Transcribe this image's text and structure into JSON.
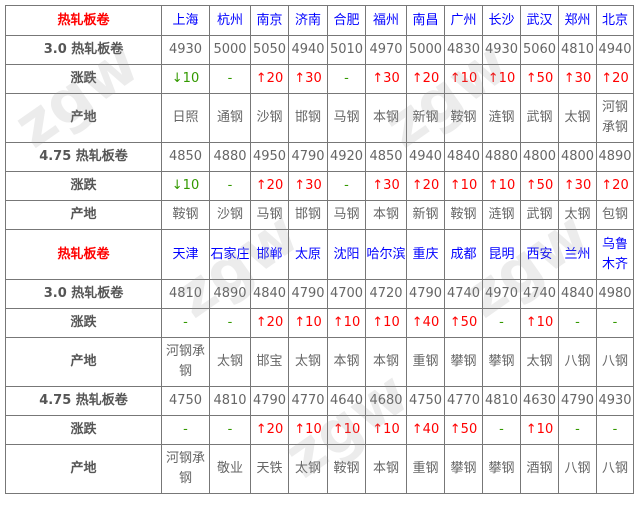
{
  "colors": {
    "city": "#0000ff",
    "title": "#ff0000",
    "up": "#ff0000",
    "down": "#339900",
    "text": "#666666"
  },
  "watermark": "zgw.com 中国互联网百强企业",
  "blocks": [
    {
      "title": "热轧板卷",
      "cities": [
        "上海",
        "杭州",
        "南京",
        "济南",
        "合肥",
        "福州",
        "南昌",
        "广州",
        "长沙",
        "武汉",
        "郑州",
        "北京"
      ],
      "rows": [
        {
          "label": "3.0 热轧板卷",
          "type": "price",
          "values": [
            "4930",
            "5000",
            "5050",
            "4940",
            "5010",
            "4970",
            "5000",
            "4830",
            "4930",
            "5060",
            "4810",
            "4940"
          ]
        },
        {
          "label": "涨跌",
          "type": "change",
          "values": [
            "↓10",
            "-",
            "↑20",
            "↑30",
            "-",
            "↑30",
            "↑20",
            "↑10",
            "↑10",
            "↑50",
            "↑30",
            "↑20"
          ]
        },
        {
          "label": "产地",
          "type": "origin",
          "values": [
            "日照",
            "通钢",
            "沙钢",
            "邯钢",
            "马钢",
            "本钢",
            "新钢",
            "鞍钢",
            "涟钢",
            "武钢",
            "太钢",
            "河钢承钢"
          ]
        },
        {
          "label": "4.75 热轧板卷",
          "type": "price",
          "values": [
            "4850",
            "4880",
            "4950",
            "4790",
            "4920",
            "4850",
            "4940",
            "4840",
            "4880",
            "4800",
            "4800",
            "4890"
          ]
        },
        {
          "label": "涨跌",
          "type": "change",
          "values": [
            "↓10",
            "-",
            "↑20",
            "↑30",
            "-",
            "↑30",
            "↑20",
            "↑10",
            "↑10",
            "↑50",
            "↑30",
            "↑20"
          ]
        },
        {
          "label": "产地",
          "type": "origin",
          "values": [
            "鞍钢",
            "沙钢",
            "马钢",
            "邯钢",
            "马钢",
            "本钢",
            "新钢",
            "鞍钢",
            "涟钢",
            "武钢",
            "太钢",
            "包钢"
          ]
        }
      ]
    },
    {
      "title": "热轧板卷",
      "cities": [
        "天津",
        "石家庄",
        "邯郸",
        "太原",
        "沈阳",
        "哈尔滨",
        "重庆",
        "成都",
        "昆明",
        "西安",
        "兰州",
        "乌鲁木齐"
      ],
      "rows": [
        {
          "label": "3.0 热轧板卷",
          "type": "price",
          "values": [
            "4810",
            "4890",
            "4840",
            "4790",
            "4700",
            "4720",
            "4790",
            "4740",
            "4970",
            "4740",
            "4840",
            "4980"
          ]
        },
        {
          "label": "涨跌",
          "type": "change",
          "values": [
            "-",
            "-",
            "↑20",
            "↑10",
            "↑10",
            "↑10",
            "↑40",
            "↑50",
            "-",
            "↑10",
            "-",
            "-"
          ]
        },
        {
          "label": "产地",
          "type": "origin",
          "values": [
            "河钢承钢",
            "太钢",
            "邯宝",
            "太钢",
            "本钢",
            "本钢",
            "重钢",
            "攀钢",
            "攀钢",
            "太钢",
            "八钢",
            "八钢"
          ]
        },
        {
          "label": "4.75 热轧板卷",
          "type": "price",
          "values": [
            "4750",
            "4810",
            "4790",
            "4770",
            "4640",
            "4680",
            "4750",
            "4770",
            "4810",
            "4630",
            "4790",
            "4930"
          ]
        },
        {
          "label": "涨跌",
          "type": "change",
          "values": [
            "-",
            "-",
            "↑20",
            "↑10",
            "↑10",
            "↑10",
            "↑40",
            "↑50",
            "-",
            "↑10",
            "-",
            "-"
          ]
        },
        {
          "label": "产地",
          "type": "origin",
          "values": [
            "河钢承钢",
            "敬业",
            "天铁",
            "太钢",
            "鞍钢",
            "本钢",
            "重钢",
            "攀钢",
            "攀钢",
            "酒钢",
            "八钢",
            "八钢"
          ]
        }
      ]
    }
  ]
}
